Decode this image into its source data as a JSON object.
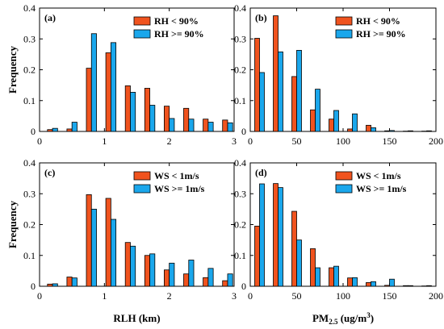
{
  "colors": {
    "series1": "#F0531E",
    "series2": "#1AA7EC",
    "edge": "#000000"
  },
  "chart_data": [
    {
      "type": "bar",
      "panel_label": "(a)",
      "xlabel": "",
      "ylabel": "Frequency",
      "xlim": [
        0,
        3
      ],
      "ylim": [
        0,
        0.4
      ],
      "xticks": [
        "0",
        "1",
        "2",
        "3"
      ],
      "yticks": [
        "0",
        "0.1",
        "0.2",
        "0.3",
        "0.4"
      ],
      "legend_position": "top-right",
      "x": [
        0.2,
        0.5,
        0.8,
        1.1,
        1.4,
        1.7,
        2.0,
        2.3,
        2.6,
        2.9
      ],
      "series": [
        {
          "name": "RH < 90%",
          "values": [
            0.006,
            0.008,
            0.205,
            0.255,
            0.148,
            0.14,
            0.082,
            0.075,
            0.04,
            0.037
          ]
        },
        {
          "name": "RH >= 90%",
          "values": [
            0.01,
            0.03,
            0.317,
            0.288,
            0.127,
            0.085,
            0.042,
            0.04,
            0.03,
            0.028
          ]
        }
      ]
    },
    {
      "type": "bar",
      "panel_label": "(b)",
      "xlabel": "",
      "ylabel": "",
      "xlim": [
        0,
        200
      ],
      "ylim": [
        0,
        0.4
      ],
      "xticks": [
        "0",
        "50",
        "100",
        "150",
        "200"
      ],
      "yticks": [
        "0",
        "0.1",
        "0.2",
        "0.3",
        "0.4"
      ],
      "legend_position": "top-right",
      "x": [
        10,
        30,
        50,
        70,
        90,
        110,
        130,
        150,
        170,
        190
      ],
      "series": [
        {
          "name": "RH < 90%",
          "values": [
            0.302,
            0.375,
            0.178,
            0.07,
            0.04,
            0.008,
            0.02,
            0.002,
            0.001,
            0.001
          ]
        },
        {
          "name": "RH >= 90%",
          "values": [
            0.191,
            0.258,
            0.263,
            0.137,
            0.068,
            0.057,
            0.012,
            0.003,
            0.002,
            0.002
          ]
        }
      ]
    },
    {
      "type": "bar",
      "panel_label": "(c)",
      "xlabel": "RLH (km)",
      "ylabel": "Frequency",
      "xlim": [
        0,
        3
      ],
      "ylim": [
        0,
        0.4
      ],
      "xticks": [
        "0",
        "1",
        "2",
        "3"
      ],
      "yticks": [
        "0",
        "0.1",
        "0.2",
        "0.3",
        "0.4"
      ],
      "legend_position": "top-right",
      "x": [
        0.2,
        0.5,
        0.8,
        1.1,
        1.4,
        1.7,
        2.0,
        2.3,
        2.6,
        2.9
      ],
      "series": [
        {
          "name": "WS < 1m/s",
          "values": [
            0.007,
            0.03,
            0.297,
            0.285,
            0.142,
            0.1,
            0.053,
            0.04,
            0.028,
            0.018
          ]
        },
        {
          "name": "WS >= 1m/s",
          "values": [
            0.008,
            0.027,
            0.25,
            0.217,
            0.13,
            0.105,
            0.075,
            0.085,
            0.058,
            0.04
          ]
        }
      ]
    },
    {
      "type": "bar",
      "panel_label": "(d)",
      "xlabel": "PM2.5 (ug/m3)",
      "ylabel": "",
      "xlim": [
        0,
        200
      ],
      "ylim": [
        0,
        0.4
      ],
      "xticks": [
        "0",
        "50",
        "100",
        "150",
        "200"
      ],
      "yticks": [
        "0",
        "0.1",
        "0.2",
        "0.3",
        "0.4"
      ],
      "legend_position": "top-right",
      "x": [
        10,
        30,
        50,
        70,
        90,
        110,
        130,
        150,
        170,
        190
      ],
      "series": [
        {
          "name": "WS < 1m/s",
          "values": [
            0.195,
            0.333,
            0.243,
            0.122,
            0.06,
            0.027,
            0.012,
            0.003,
            0.002,
            0.001
          ]
        },
        {
          "name": "WS >= 1m/s",
          "values": [
            0.332,
            0.32,
            0.15,
            0.06,
            0.065,
            0.028,
            0.015,
            0.023,
            0.002,
            0.002
          ]
        }
      ]
    }
  ]
}
